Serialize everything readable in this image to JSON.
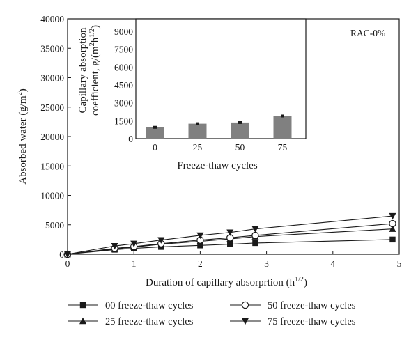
{
  "chart_data": [
    {
      "type": "line",
      "annotation": "RAC-0%",
      "xlabel": "Duration of capillary absorprtion (h",
      "xlabel_sup": "1/2",
      "xlabel_close": ")",
      "ylabel": "Absorbed water (g/m",
      "ylabel_sup": "2",
      "ylabel_close": ")",
      "xlim": [
        0,
        5
      ],
      "ylim": [
        0,
        40000
      ],
      "xticks": [
        "0",
        "1",
        "2",
        "3",
        "4",
        "5"
      ],
      "yticks": [
        "0",
        "5000",
        "10000",
        "15000",
        "20000",
        "25000",
        "30000",
        "35000",
        "40000"
      ],
      "grid": false,
      "legend_position": "bottom",
      "series": [
        {
          "name": "00 freeze-thaw cycles",
          "marker": "square",
          "x": [
            0,
            0.71,
            1,
            1.41,
            2,
            2.45,
            2.83,
            4.9
          ],
          "y": [
            0,
            780,
            1000,
            1250,
            1500,
            1700,
            1900,
            2500
          ]
        },
        {
          "name": "25 freeze-thaw cycles",
          "marker": "triangle",
          "x": [
            0,
            0.71,
            1,
            1.41,
            2,
            2.45,
            2.83,
            4.9
          ],
          "y": [
            0,
            900,
            1200,
            1700,
            2200,
            2600,
            3000,
            4300
          ]
        },
        {
          "name": "50 freeze-thaw cycles",
          "marker": "circle",
          "x": [
            0,
            0.71,
            1,
            1.41,
            2,
            2.45,
            2.83,
            4.9
          ],
          "y": [
            0,
            1000,
            1300,
            1800,
            2400,
            2800,
            3200,
            5200
          ]
        },
        {
          "name": "75 freeze-thaw cycles",
          "marker": "inv-triangle",
          "x": [
            0,
            0.71,
            1,
            1.41,
            2,
            2.45,
            2.83,
            4.9
          ],
          "y": [
            0,
            1400,
            1800,
            2400,
            3200,
            3700,
            4300,
            6500
          ]
        }
      ]
    },
    {
      "type": "bar",
      "inset": true,
      "ylabel_line1": "Capillary absorption",
      "ylabel_line2": "coefficient, g/(m",
      "ylabel_sup1": "2",
      "ylabel_mid": "h",
      "ylabel_sup2": "1/2",
      "ylabel_close": ")",
      "xlabel": "Freeze-thaw cycles",
      "categories": [
        "0",
        "25",
        "50",
        "75"
      ],
      "values": [
        950,
        1250,
        1350,
        1900
      ],
      "errors": [
        30,
        30,
        30,
        30
      ],
      "ylim": [
        0,
        9000
      ],
      "yticks": [
        "0",
        "1500",
        "3000",
        "4500",
        "6000",
        "7500",
        "9000"
      ],
      "bar_color": "#808080"
    }
  ]
}
